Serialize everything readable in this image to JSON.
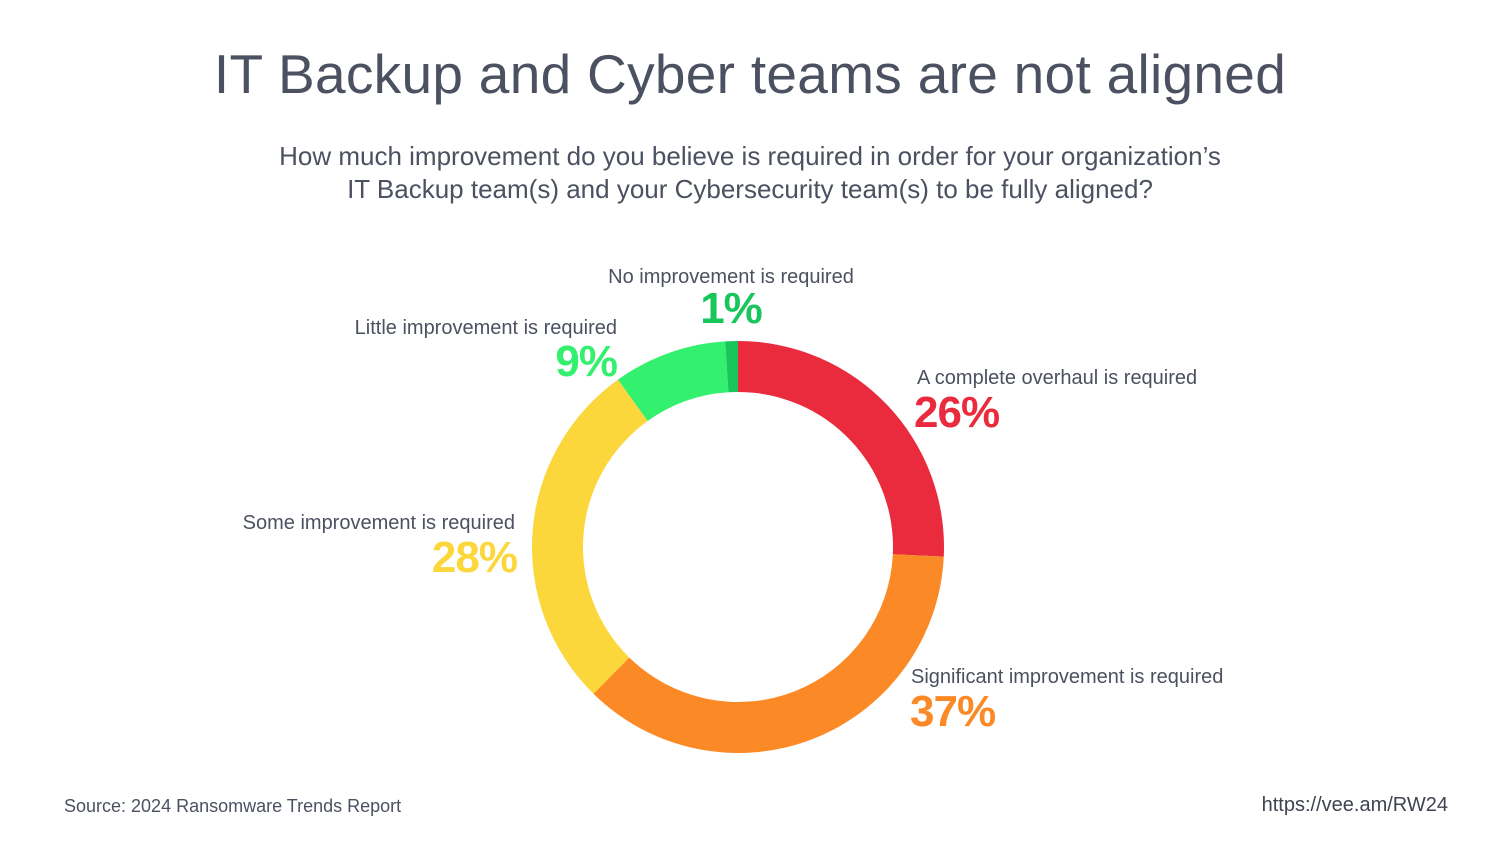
{
  "title": "IT Backup and Cyber teams are not aligned",
  "subtitle_lines": [
    "How much improvement do you believe is required in order for your organization’s",
    "IT Backup team(s) and your Cybersecurity team(s) to be fully aligned?"
  ],
  "chart_data": {
    "type": "pie",
    "style": "donut",
    "slices": [
      {
        "label": "A complete overhaul is required",
        "value": 26,
        "display": "26%",
        "color": "#ea2b3d"
      },
      {
        "label": "Significant improvement is required",
        "value": 37,
        "display": "37%",
        "color": "#fb8a26"
      },
      {
        "label": "Some improvement is required",
        "value": 28,
        "display": "28%",
        "color": "#fcd73c"
      },
      {
        "label": "Little improvement is required",
        "value": 9,
        "display": "9%",
        "color": "#33f06e"
      },
      {
        "label": "No improvement is required",
        "value": 1,
        "display": "1%",
        "color": "#18c65c"
      }
    ]
  },
  "footer": {
    "source": "Source: 2024 Ransomware Trends Report",
    "url": "https://vee.am/RW24"
  }
}
